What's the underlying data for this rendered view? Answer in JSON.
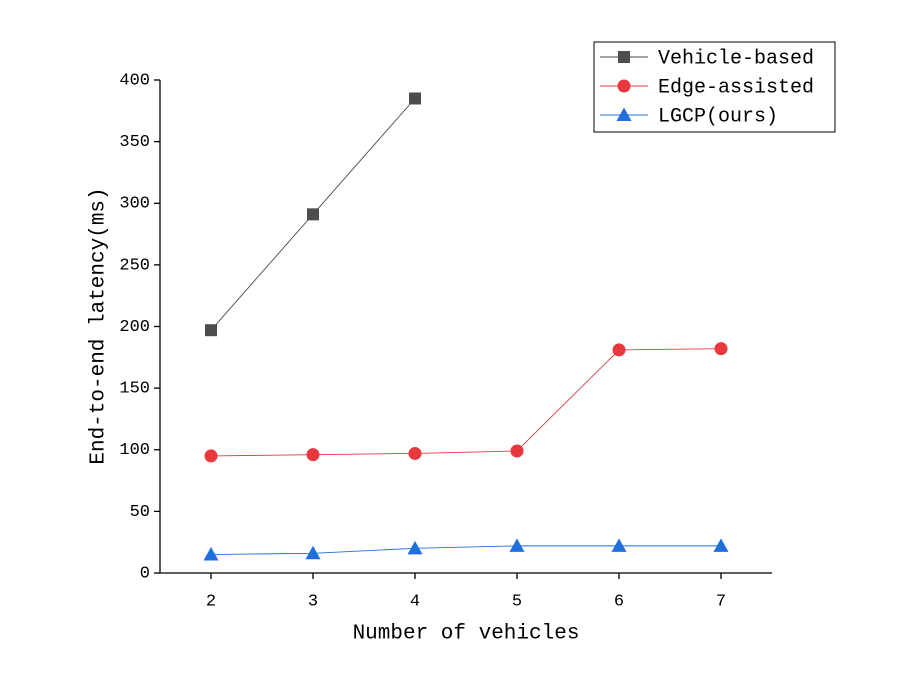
{
  "chart_data": {
    "type": "line",
    "x_label": "Number of vehicles",
    "y_label": "End-to-end latency(ms)",
    "x": [
      2,
      3,
      4,
      5,
      6,
      7
    ],
    "xlim": [
      1.5,
      7.5
    ],
    "xticks": [
      2,
      3,
      4,
      5,
      6,
      7
    ],
    "ylim": [
      0,
      400
    ],
    "yticks": [
      0,
      50,
      100,
      150,
      200,
      250,
      300,
      350,
      400
    ],
    "legend": "upper right",
    "series": [
      {
        "name": "Vehicle-based",
        "color": "#4d4d4d",
        "marker": "square",
        "values": [
          197,
          291,
          385,
          null,
          null,
          null
        ]
      },
      {
        "name": "Edge-assisted",
        "color": "#e8383d",
        "marker": "circle",
        "values": [
          95,
          96,
          97,
          99,
          181,
          182
        ]
      },
      {
        "name": "LGCP(ours)",
        "color": "#1f6fdc",
        "marker": "triangle",
        "values": [
          15,
          16,
          20,
          22,
          22,
          22
        ]
      }
    ]
  }
}
